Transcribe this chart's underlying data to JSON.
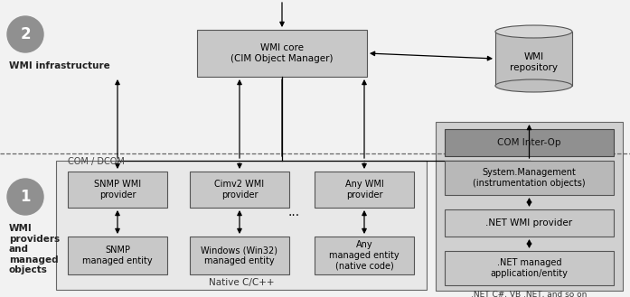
{
  "bg_color": "#f2f2f2",
  "wmi_core_text": "WMI core\n(CIM Object Manager)",
  "wmi_repo_text": "WMI\nrepository",
  "snmp_provider_text": "SNMP WMI\nprovider",
  "cimv2_provider_text": "Cimv2 WMI\nprovider",
  "any_provider_text": "Any WMI\nprovider",
  "snmp_entity_text": "SNMP\nmanaged entity",
  "win32_entity_text": "Windows (Win32)\nmanaged entity",
  "any_entity_text": "Any\nmanaged entity\n(native code)",
  "native_label": "Native C/C++",
  "com_dcom_label": "COM / DCOM",
  "label2": "2",
  "label1": "1",
  "infra_label": "WMI infrastructure",
  "providers_label": "WMI\nproviders\nand\nmanaged\nobjects",
  "com_interop_text": "COM Inter-Op",
  "sys_mgmt_text": "System.Management\n(instrumentation objects)",
  "net_wmi_text": ".NET WMI provider",
  "net_managed_text": ".NET managed\napplication/entity",
  "net_label": ".NET C#, VB .NET, and so on",
  "box_gray": "#c8c8c8",
  "box_light": "#d8d8d8",
  "box_dark": "#909090",
  "box_darker": "#787878",
  "section_bg": "#e8e8e8",
  "net_section_bg": "#d0d0d0",
  "circle_gray": "#909090",
  "text_black": "#000000",
  "text_dark": "#222222",
  "border_color": "#888888",
  "dashed_color": "#666666"
}
